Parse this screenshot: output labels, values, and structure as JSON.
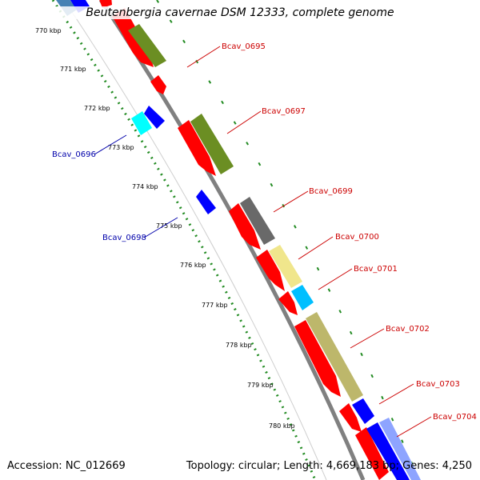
{
  "title": "Beutenbergia cavernae DSM 12333, complete genome",
  "footer": {
    "accession": "Accession: NC_012669",
    "summary": "Topology: circular; Length: 4,669,183 bp; Genes: 4,250"
  },
  "colors": {
    "background": "#ffffff",
    "backbone": "#808080",
    "tick_minor": "#228b22",
    "label_plus": "#cc0000",
    "label_minus": "#0000aa",
    "cds_red": "#ff0000",
    "olive": "#6b8e23",
    "gray": "#696969",
    "khaki": "#f0e68c",
    "sky": "#00bfff",
    "darkkhaki": "#bdb76b",
    "blue": "#0000ff",
    "cyan": "#00ffff",
    "steel": "#4682b4"
  },
  "scale_labels": [
    "770 kbp",
    "771 kbp",
    "772 kbp",
    "773 kbp",
    "774 kbp",
    "775 kbp",
    "776 kbp",
    "777 kbp",
    "778 kbp",
    "779 kbp",
    "780 kbp"
  ],
  "gene_labels_plus": [
    "Bcav_0695",
    "Bcav_0697",
    "Bcav_0699",
    "Bcav_0700",
    "Bcav_0701",
    "Bcav_0702",
    "Bcav_0703",
    "Bcav_0704"
  ],
  "gene_labels_minus": [
    "Bcav_0696",
    "Bcav_0698"
  ]
}
